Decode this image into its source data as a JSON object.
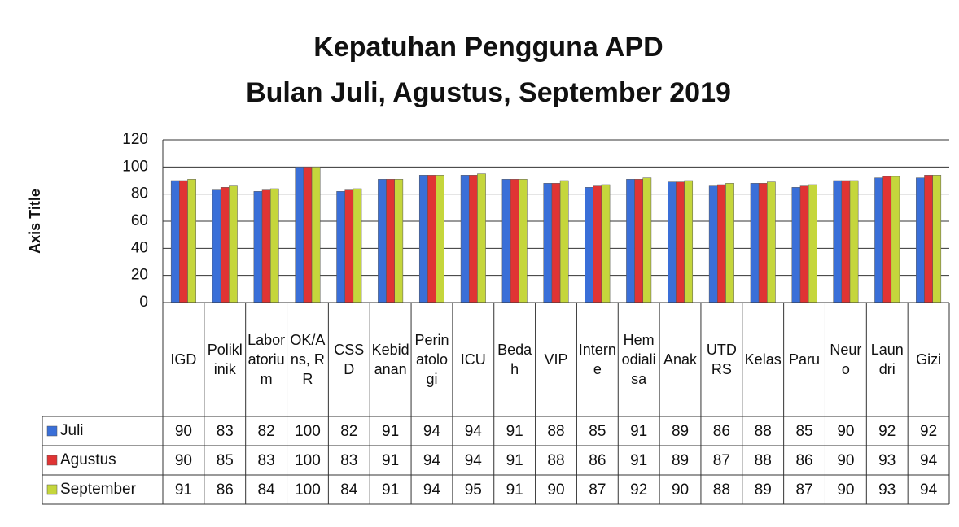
{
  "chart_data": {
    "type": "bar",
    "title": "Kepatuhan Pengguna APD",
    "subtitle": "Bulan Juli, Agustus, September 2019",
    "y_label": "Axis Title",
    "categories": [
      "IGD",
      "Poliklinik",
      "Laboratorium",
      "OK/Ans, RR",
      "CSSD",
      "Kebidanan",
      "Perinatologi",
      "ICU",
      "Bedah",
      "VIP",
      "Interne",
      "Hemodialisa",
      "Anak",
      "UTD RS",
      "Kelas",
      "Paru",
      "Neuro",
      "Laundri",
      "Gizi"
    ],
    "series": [
      {
        "name": "Juli",
        "color": "#3a6fd8",
        "values": [
          90,
          83,
          82,
          100,
          82,
          91,
          94,
          94,
          91,
          88,
          85,
          91,
          89,
          86,
          88,
          85,
          90,
          92,
          92
        ]
      },
      {
        "name": "Agustus",
        "color": "#e03434",
        "values": [
          90,
          85,
          83,
          100,
          83,
          91,
          94,
          94,
          91,
          88,
          86,
          91,
          89,
          87,
          88,
          86,
          90,
          93,
          94
        ]
      },
      {
        "name": "September",
        "color": "#c5d63c",
        "values": [
          91,
          86,
          84,
          100,
          84,
          91,
          94,
          95,
          91,
          90,
          87,
          92,
          90,
          88,
          89,
          87,
          90,
          93,
          94
        ]
      }
    ],
    "ylim": [
      0,
      120
    ],
    "yticks": [
      0,
      20,
      40,
      60,
      80,
      100,
      120
    ],
    "grid": true,
    "data_table": true
  }
}
